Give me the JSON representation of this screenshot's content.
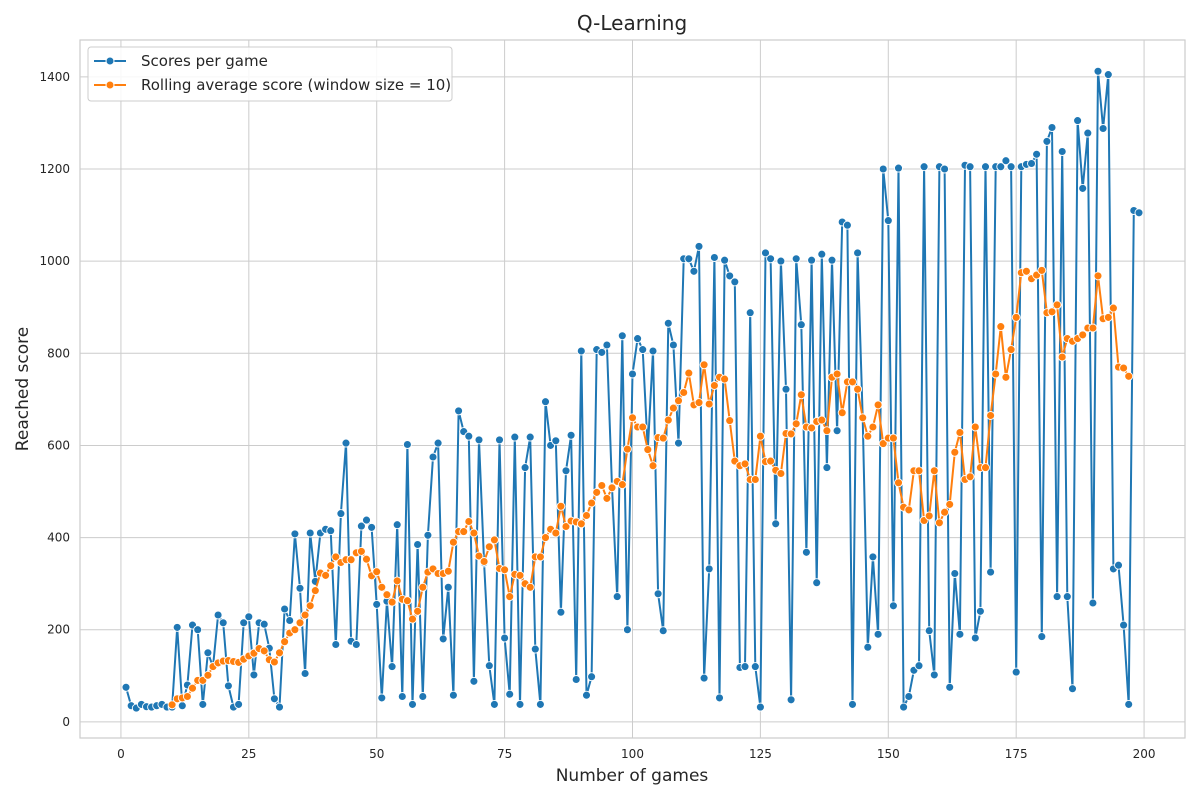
{
  "chart_data": {
    "type": "line",
    "title": "Q-Learning",
    "xlabel": "Number of games",
    "ylabel": "Reached score",
    "xlim": [
      -8,
      208
    ],
    "ylim": [
      -35,
      1480
    ],
    "xticks": [
      0,
      25,
      50,
      75,
      100,
      125,
      150,
      175,
      200
    ],
    "yticks": [
      0,
      200,
      400,
      600,
      800,
      1000,
      1200,
      1400
    ],
    "grid": true,
    "legend_position": "top-left",
    "series": [
      {
        "name": "Scores per game",
        "color": "#1f77b4",
        "x_start": 1,
        "values": [
          75,
          35,
          30,
          38,
          33,
          32,
          35,
          38,
          32,
          32,
          205,
          35,
          80,
          210,
          200,
          38,
          150,
          120,
          232,
          215,
          78,
          32,
          38,
          215,
          228,
          102,
          215,
          212,
          160,
          50,
          32,
          245,
          220,
          408,
          290,
          105,
          410,
          305,
          410,
          418,
          415,
          168,
          452,
          605,
          175,
          168,
          425,
          438,
          422,
          255,
          52,
          262,
          120,
          428,
          55,
          602,
          38,
          385,
          55,
          405,
          575,
          605,
          180,
          292,
          58,
          675,
          630,
          620,
          88,
          612,
          345,
          122,
          38,
          612,
          182,
          60,
          618,
          38,
          552,
          618,
          158,
          38,
          695,
          600,
          610,
          238,
          545,
          622,
          92,
          805,
          58,
          98,
          808,
          802,
          818,
          510,
          272,
          838,
          200,
          755,
          832,
          808,
          590,
          805,
          278,
          198,
          865,
          818,
          605,
          1005,
          1005,
          978,
          1032,
          95,
          332,
          1008,
          52,
          1002,
          968,
          955,
          118,
          120,
          888,
          120,
          32,
          1018,
          1005,
          430,
          1000,
          722,
          48,
          1005,
          862,
          368,
          1002,
          302,
          1015,
          552,
          1002,
          632,
          1085,
          1078,
          38,
          1018,
          660,
          162,
          358,
          190,
          1200,
          1088,
          252,
          1202,
          32,
          55,
          112,
          122,
          1205,
          198,
          102,
          1205,
          1200,
          75,
          322,
          190,
          1208,
          1205,
          182,
          240,
          1205,
          325,
          1205,
          1205,
          1218,
          1205,
          108,
          1205,
          1210,
          1212,
          1232,
          185,
          1260,
          1290,
          272,
          1238,
          272,
          72,
          1305,
          1158,
          1278,
          258,
          1412,
          1288,
          1405,
          332,
          340,
          210,
          38,
          1110,
          1105
        ]
      },
      {
        "name": "Rolling average score (window size = 10)",
        "color": "#ff7f0e",
        "x_start": 10,
        "values": [
          37,
          50,
          52,
          55,
          73,
          90,
          90,
          101,
          120,
          128,
          132,
          133,
          131,
          129,
          136,
          143,
          149,
          159,
          154,
          135,
          130,
          150,
          174,
          193,
          200,
          215,
          232,
          252,
          285,
          323,
          318,
          339,
          358,
          346,
          352,
          352,
          367,
          370,
          353,
          317,
          326,
          292,
          276,
          260,
          306,
          266,
          263,
          223,
          240,
          292,
          325,
          332,
          322,
          322,
          327,
          390,
          413,
          413,
          435,
          410,
          360,
          348,
          380,
          395,
          333,
          330,
          272,
          320,
          318,
          300,
          292,
          358,
          358,
          400,
          418,
          410,
          468,
          424,
          436,
          434,
          430,
          448,
          475,
          498,
          513,
          485,
          508,
          522,
          515,
          592,
          660,
          640,
          640,
          591,
          556,
          617,
          616,
          655,
          681,
          697,
          715,
          757,
          688,
          693,
          775,
          690,
          730,
          748,
          744,
          654,
          566,
          556,
          560,
          526,
          526,
          620,
          565,
          566,
          546,
          539,
          626,
          625,
          647,
          710,
          640,
          638,
          652,
          655,
          632,
          748,
          755,
          671,
          738,
          738,
          722,
          660,
          620,
          640,
          688,
          604,
          616,
          616,
          519,
          466,
          460,
          545,
          545,
          437,
          447,
          545,
          432,
          455,
          472,
          585,
          628,
          526,
          532,
          640,
          552,
          552,
          665,
          755,
          858,
          748,
          808,
          878,
          975,
          978,
          962,
          970,
          980,
          888,
          890,
          905,
          792,
          832,
          826,
          832,
          840,
          855,
          855,
          968,
          875,
          878,
          898,
          770,
          768,
          750
        ]
      }
    ]
  }
}
